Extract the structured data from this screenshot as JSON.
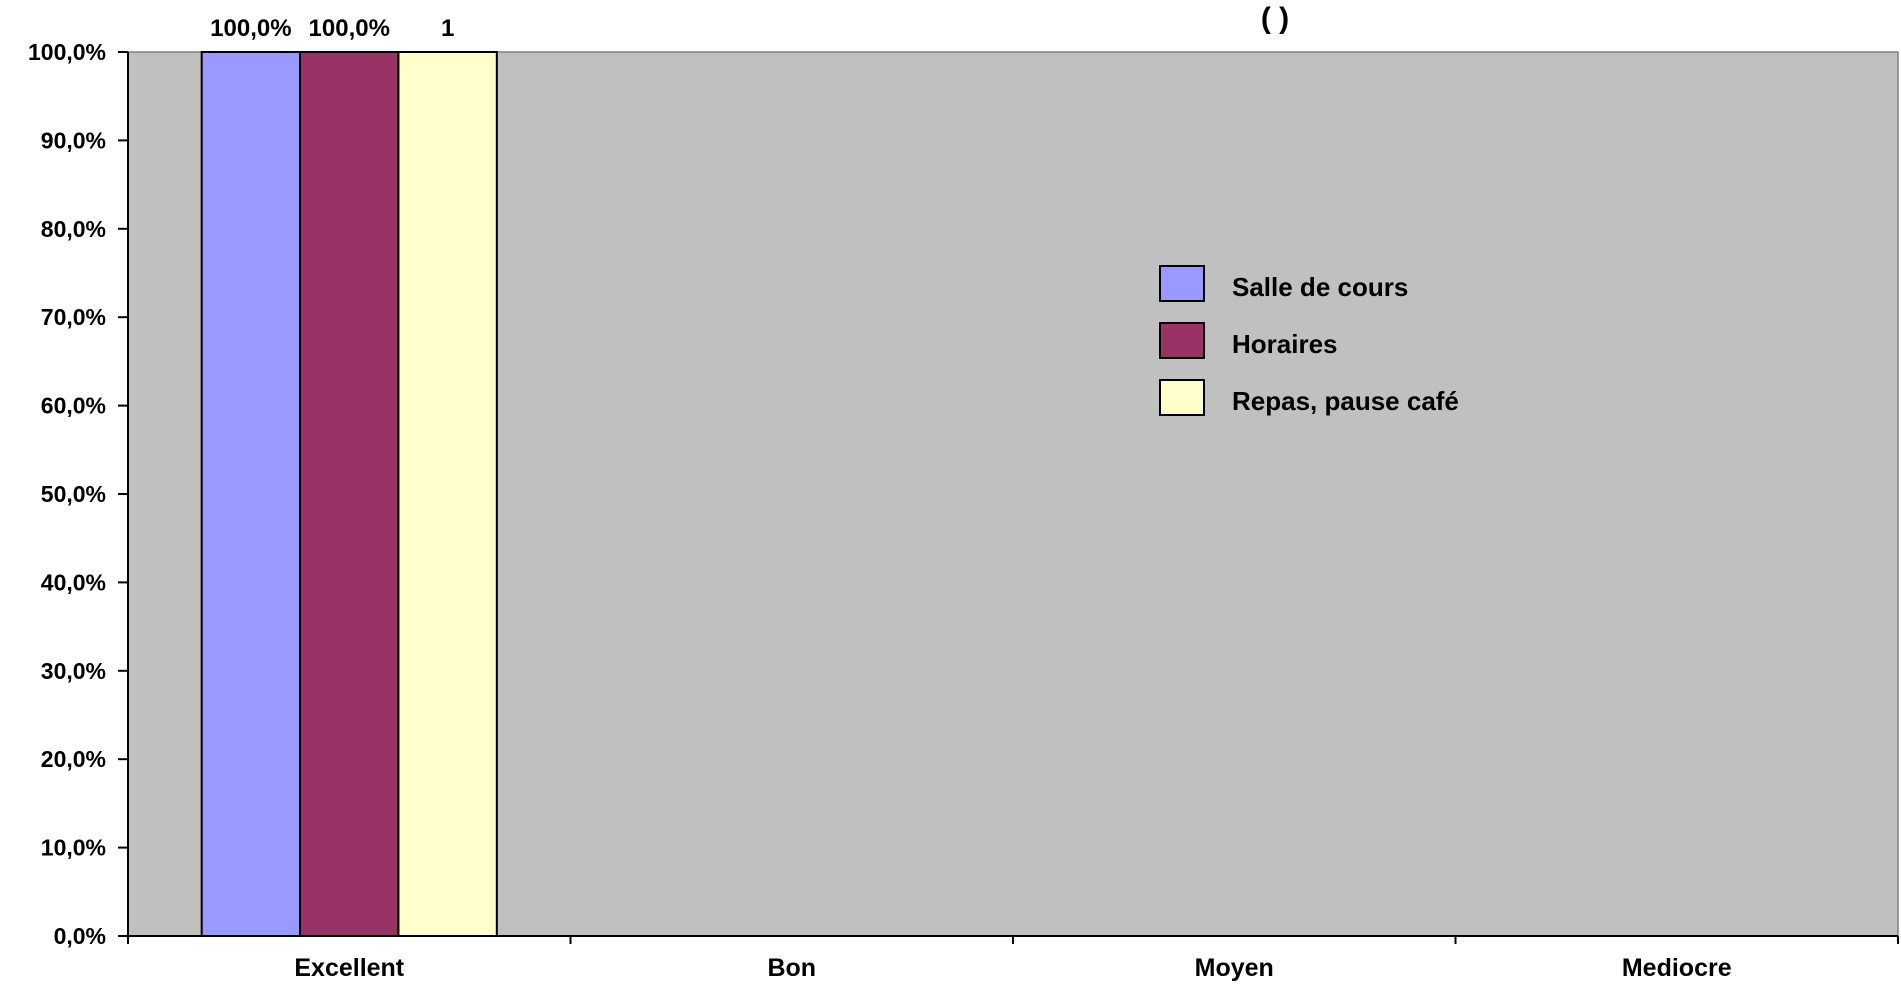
{
  "chart_data": {
    "type": "bar",
    "title_fragment": "(                                        )",
    "categories": [
      "Excellent",
      "Bon",
      "Moyen",
      "Mediocre"
    ],
    "series": [
      {
        "name": "Salle de cours",
        "values": [
          1.0,
          0,
          0,
          0
        ],
        "color": "#9999ff",
        "label": "100,0%"
      },
      {
        "name": "Horaires",
        "values": [
          1.0,
          0,
          0,
          0
        ],
        "color": "#993366",
        "label": "100,0%"
      },
      {
        "name": "Repas, pause café",
        "values": [
          1.0,
          0,
          0,
          0
        ],
        "color": "#ffffcc",
        "label": "1"
      }
    ],
    "ylim": [
      0,
      1
    ],
    "yticks": [
      "0,0%",
      "10,0%",
      "20,0%",
      "30,0%",
      "40,0%",
      "50,0%",
      "60,0%",
      "70,0%",
      "80,0%",
      "90,0%",
      "100,0%"
    ],
    "plot_background": "#c0c0c0",
    "grid": false,
    "legend_position": "right-center"
  }
}
